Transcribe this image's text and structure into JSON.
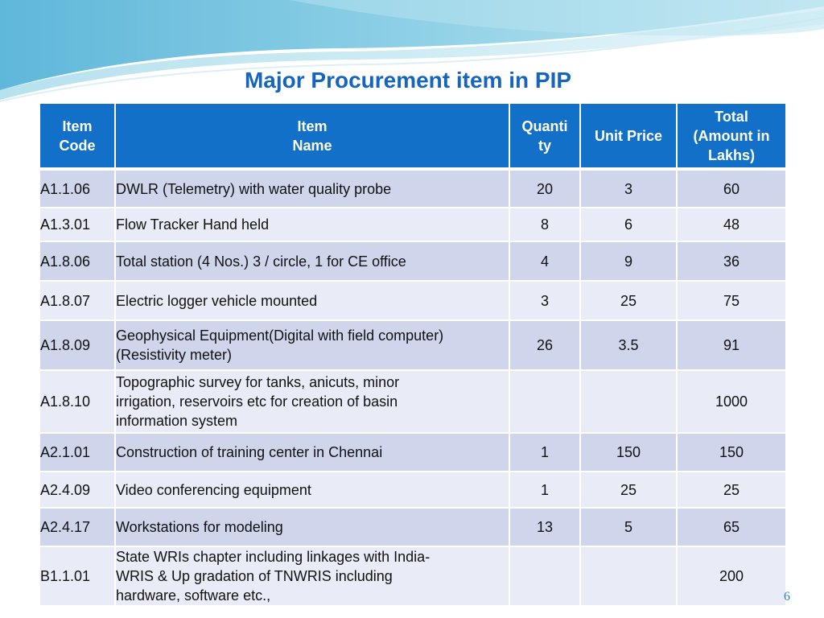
{
  "title": "Major Procurement item in PIP",
  "page_number": "6",
  "colors": {
    "header": "#1270C8",
    "row_dark": "#CFD6EC",
    "row_light": "#E9ECF6",
    "title": "#1565C0"
  },
  "table": {
    "headers": {
      "code": "Item\nCode",
      "name": "Item\nName",
      "qty": "Quanti\nty",
      "price": "Unit Price",
      "total": "Total\n(Amount in\nLakhs)"
    },
    "rows": [
      {
        "code": "A1.1.06",
        "name": "DWLR (Telemetry) with water quality probe",
        "qty": "20",
        "price": "3",
        "total": "60"
      },
      {
        "code": "A1.3.01",
        "name": "Flow Tracker Hand held",
        "qty": "8",
        "price": "6",
        "total": "48"
      },
      {
        "code": "A1.8.06",
        "name": " Total station (4 Nos.) 3 / circle, 1 for CE office",
        "qty": "4",
        "price": "9",
        "total": "36"
      },
      {
        "code": "A1.8.07",
        "name": "Electric logger vehicle mounted",
        "qty": "3",
        "price": "25",
        "total": "75"
      },
      {
        "code": "A1.8.09",
        "name": "Geophysical Equipment(Digital with field computer)\n(Resistivity meter)",
        "qty": "26",
        "price": "3.5",
        "total": "91"
      },
      {
        "code": "A1.8.10",
        "name": "Topographic survey for tanks, anicuts, minor\nirrigation, reservoirs etc for creation of basin\ninformation system",
        "qty": "",
        "price": "",
        "total": "1000"
      },
      {
        "code": "A2.1.01",
        "name": "Construction of training center in Chennai",
        "qty": "1",
        "price": "150",
        "total": "150"
      },
      {
        "code": "A2.4.09",
        "name": "Video conferencing equipment",
        "qty": "1",
        "price": "25",
        "total": "25"
      },
      {
        "code": "A2.4.17",
        "name": "Workstations for modeling",
        "qty": "13",
        "price": "5",
        "total": "65"
      },
      {
        "code": "B1.1.01",
        "name": "State WRIs chapter including linkages with India-\nWRIS & Up gradation of TNWRIS including\nhardware, software etc.,",
        "qty": "",
        "price": "",
        "total": "200"
      }
    ]
  }
}
